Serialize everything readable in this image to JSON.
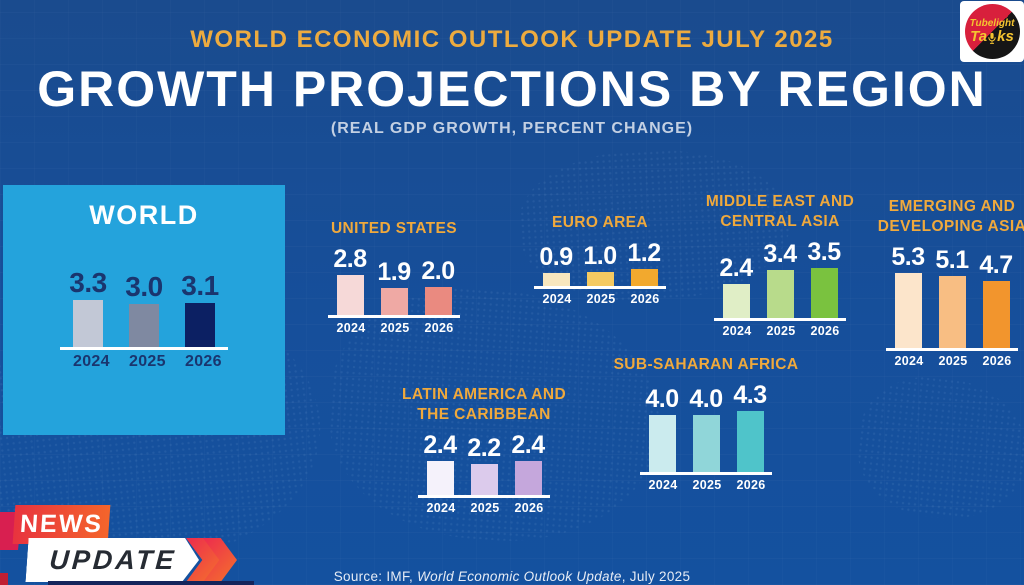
{
  "header": {
    "kicker": "WORLD ECONOMIC OUTLOOK UPDATE JULY 2025",
    "title": "GROWTH PROJECTIONS BY REGION",
    "subtitle": "(REAL GDP GROWTH, PERCENT CHANGE)"
  },
  "world_panel": {
    "title": "WORLD"
  },
  "badge": {
    "news": "NEWS",
    "update": "UPDATE"
  },
  "source": {
    "prefix": "Source: IMF, ",
    "italic": "World Economic Outlook Update",
    "suffix": ", July 2025"
  },
  "logo": {
    "line1": "Tubelight",
    "line2_left": "Ta",
    "line2_right": "ks"
  },
  "colors": {
    "background": "#1a4b8e",
    "panel_blue": "#24a3dc",
    "accent_yellow": "#f0a93c",
    "title_white": "#ffffff",
    "world_label_navy": "#1a356e",
    "news_red": "#e8333f",
    "news_orange": "#f4652b",
    "badge_magenta": "#d81f50"
  },
  "chart_data": [
    {
      "id": "world",
      "type": "bar",
      "title_lines": [],
      "region": "WORLD",
      "categories": [
        "2024",
        "2025",
        "2026"
      ],
      "values": [
        3.3,
        3.0,
        3.1
      ],
      "bar_colors": [
        "#c2c8d6",
        "#7f89a1",
        "#0c2063"
      ],
      "ylim": [
        0,
        6
      ],
      "grid": false,
      "value_labels": true
    },
    {
      "id": "united-states",
      "type": "bar",
      "title_lines": [
        "UNITED STATES"
      ],
      "region": "UNITED STATES",
      "categories": [
        "2024",
        "2025",
        "2026"
      ],
      "values": [
        2.8,
        1.9,
        2.0
      ],
      "bar_colors": [
        "#f6d9d8",
        "#efa9a4",
        "#ea8a80"
      ],
      "ylim": [
        0,
        6
      ],
      "grid": false,
      "value_labels": true
    },
    {
      "id": "euro-area",
      "type": "bar",
      "title_lines": [
        "EURO AREA"
      ],
      "region": "EURO AREA",
      "categories": [
        "2024",
        "2025",
        "2026"
      ],
      "values": [
        0.9,
        1.0,
        1.2
      ],
      "bar_colors": [
        "#f8e7be",
        "#f5ca61",
        "#f2a92e"
      ],
      "ylim": [
        0,
        6
      ],
      "grid": false,
      "value_labels": true
    },
    {
      "id": "middle-east-central-asia",
      "type": "bar",
      "title_lines": [
        "MIDDLE EAST AND",
        "CENTRAL ASIA"
      ],
      "region": "MIDDLE EAST AND CENTRAL ASIA",
      "categories": [
        "2024",
        "2025",
        "2026"
      ],
      "values": [
        2.4,
        3.4,
        3.5
      ],
      "bar_colors": [
        "#e0eec6",
        "#b8db8b",
        "#7ac23f"
      ],
      "ylim": [
        0,
        6
      ],
      "grid": false,
      "value_labels": true
    },
    {
      "id": "emerging-developing-asia",
      "type": "bar",
      "title_lines": [
        "EMERGING AND",
        "DEVELOPING ASIA"
      ],
      "region": "EMERGING AND DEVELOPING ASIA",
      "categories": [
        "2024",
        "2025",
        "2026"
      ],
      "values": [
        5.3,
        5.1,
        4.7
      ],
      "bar_colors": [
        "#fce5cb",
        "#f8be83",
        "#f2952d"
      ],
      "ylim": [
        0,
        6
      ],
      "grid": false,
      "value_labels": true
    },
    {
      "id": "latin-america-caribbean",
      "type": "bar",
      "title_lines": [
        "LATIN AMERICA AND",
        "THE CARIBBEAN"
      ],
      "region": "LATIN AMERICA AND THE CARIBBEAN",
      "categories": [
        "2024",
        "2025",
        "2026"
      ],
      "values": [
        2.4,
        2.2,
        2.4
      ],
      "bar_colors": [
        "#f5f2fb",
        "#dccbec",
        "#c5a7dc"
      ],
      "ylim": [
        0,
        6
      ],
      "grid": false,
      "value_labels": true
    },
    {
      "id": "sub-saharan-africa",
      "type": "bar",
      "title_lines": [
        "SUB-SAHARAN AFRICA"
      ],
      "region": "SUB-SAHARAN AFRICA",
      "categories": [
        "2024",
        "2025",
        "2026"
      ],
      "values": [
        4.0,
        4.0,
        4.3
      ],
      "bar_colors": [
        "#cbebee",
        "#90d6d9",
        "#4fc4ca"
      ],
      "ylim": [
        0,
        6
      ],
      "grid": false,
      "value_labels": true
    }
  ]
}
